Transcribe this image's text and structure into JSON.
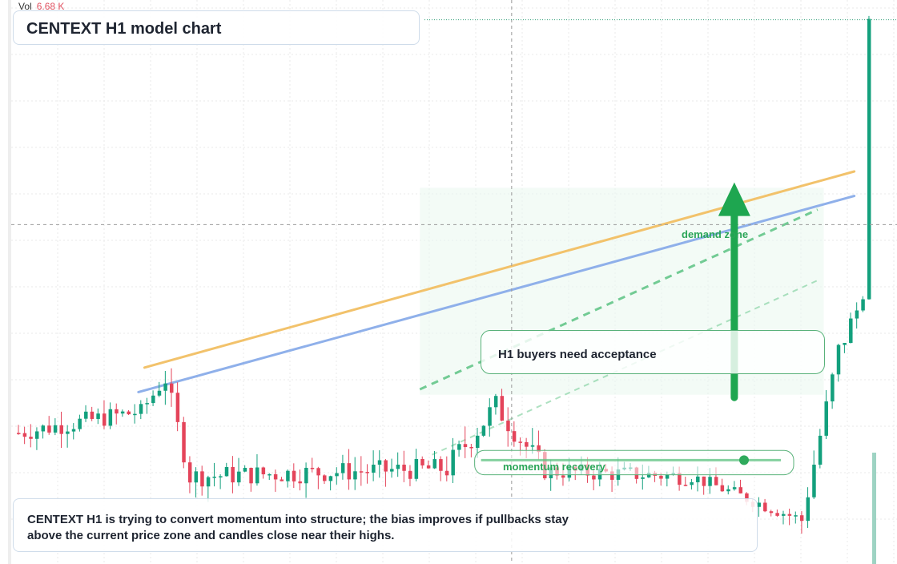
{
  "header": {
    "volume_label": "Vol",
    "volume_value": "6.68 K",
    "title": "CENTEXT H1 model chart"
  },
  "annotations": {
    "callout": "H1 buyers need acceptance",
    "demand_zone": "demand zone",
    "momentum_zone": "momentum recovery",
    "summary": "CENTEXT H1 is trying to convert momentum into structure; the bias improves if pullbacks stay above the current price zone and candles close near their highs."
  },
  "colors": {
    "up": "#13a07d",
    "down": "#e4445a",
    "orange_line": "#f2c26b",
    "blue_line": "#8fb0ea",
    "green_dash": "#6cc98f",
    "arrow": "#1ea650"
  },
  "chart_data": {
    "type": "candlestick",
    "y_range": [
      0,
      100
    ],
    "seed": 7,
    "segments": [
      {
        "from": 0,
        "to": 20,
        "start": 22.0,
        "end": 26.0,
        "noise": 2.2
      },
      {
        "from": 20,
        "to": 24,
        "start": 26.0,
        "end": 32.0,
        "noise": 1.8
      },
      {
        "from": 24,
        "to": 28,
        "start": 32.0,
        "end": 14.0,
        "noise": 2.5
      },
      {
        "from": 28,
        "to": 70,
        "start": 14.0,
        "end": 15.5,
        "noise": 2.4
      },
      {
        "from": 70,
        "to": 78,
        "start": 15.5,
        "end": 27.0,
        "noise": 3.0
      },
      {
        "from": 78,
        "to": 86,
        "start": 27.0,
        "end": 15.0,
        "noise": 2.8
      },
      {
        "from": 86,
        "to": 110,
        "start": 15.0,
        "end": 14.0,
        "noise": 2.0
      },
      {
        "from": 110,
        "to": 128,
        "start": 14.0,
        "end": 6.0,
        "noise": 1.6
      },
      {
        "from": 128,
        "to": 134,
        "start": 6.0,
        "end": 37.0,
        "noise": 2.5
      },
      {
        "from": 134,
        "to": 138,
        "start": 37.0,
        "end": 47.0,
        "noise": 2.8
      },
      {
        "from": 138,
        "to": 140,
        "start": 47.0,
        "end": 98.0,
        "noise": 0.6
      }
    ],
    "candle_count": 140,
    "trend_lines": [
      {
        "name": "orange",
        "from": [
          21,
          34.0
        ],
        "to": [
          137,
          70.0
        ]
      },
      {
        "name": "blue",
        "from": [
          20,
          29.5
        ],
        "to": [
          137,
          65.5
        ]
      }
    ],
    "dashed_lines": [
      {
        "from": [
          66,
          30.0
        ],
        "to": [
          131,
          63.0
        ]
      },
      {
        "from": [
          68,
          18.0
        ],
        "to": [
          131,
          50.0
        ]
      }
    ],
    "zones": {
      "demand": {
        "from": 66,
        "to": 132,
        "bottom": 29.0,
        "top": 67.0
      },
      "momentum": {
        "from": 76,
        "to": 125,
        "bottom": 15.5,
        "top": 18.5,
        "level": 17.0
      }
    },
    "arrow": {
      "x": 117,
      "from": 28.5,
      "to": 68.0
    },
    "crosshair": {
      "x": 81,
      "y": 62.0
    },
    "last_price": 98.0
  }
}
